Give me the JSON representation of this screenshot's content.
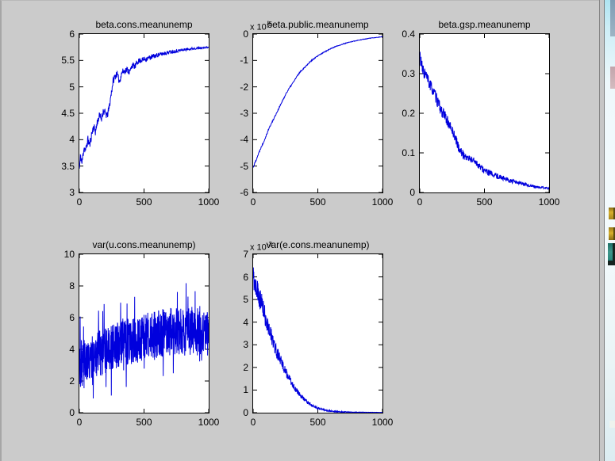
{
  "figure": {
    "background": "#cbcbcb",
    "plot_background": "#ffffff",
    "axis_color": "#000000",
    "trace_color": "#0000dd"
  },
  "desktop": {
    "strip_colors": {
      "top": "#aee4f1",
      "middle": "#f2fafc",
      "bottom": "#dcedf2"
    },
    "icons": [
      {
        "name": "window-fragment-blue",
        "color": "#8fa8bc"
      },
      {
        "name": "icon-fragment-pink",
        "color": "#c2a4ab"
      },
      {
        "name": "desktop-icon-yellow-upper",
        "color": "#c9a32a"
      },
      {
        "name": "desktop-icon-yellow-lower",
        "color": "#c9a32a"
      },
      {
        "name": "desktop-icon-teal",
        "color": "#2e8b80"
      },
      {
        "name": "icon-fragment-light",
        "color": "#eef3ee"
      }
    ]
  },
  "chart_data": [
    {
      "type": "line",
      "title": "beta.cons.meanunemp",
      "exponent": null,
      "xlim": [
        0,
        1000
      ],
      "ylim": [
        3,
        6
      ],
      "xticks": [
        "0",
        "500",
        "1000"
      ],
      "yticks": [
        "3",
        "3.5",
        "4",
        "4.5",
        "5",
        "5.5",
        "6"
      ],
      "line_color": "#0000dd",
      "anchors": {
        "x": [
          0,
          10,
          20,
          35,
          50,
          65,
          80,
          95,
          110,
          125,
          140,
          155,
          170,
          185,
          200,
          215,
          230,
          245,
          260,
          275,
          290,
          310,
          330,
          350,
          370,
          390,
          410,
          430,
          450,
          470,
          500,
          550,
          600,
          650,
          700,
          750,
          800,
          850,
          900,
          950,
          1000
        ],
        "y": [
          3.45,
          3.7,
          3.55,
          3.85,
          3.8,
          4.0,
          3.9,
          4.1,
          4.25,
          4.15,
          4.35,
          4.45,
          4.4,
          4.55,
          4.5,
          4.45,
          4.6,
          4.85,
          5.1,
          5.2,
          5.25,
          5.1,
          5.28,
          5.3,
          5.33,
          5.28,
          5.42,
          5.38,
          5.48,
          5.5,
          5.52,
          5.56,
          5.6,
          5.63,
          5.66,
          5.68,
          5.7,
          5.72,
          5.73,
          5.74,
          5.75
        ]
      },
      "noise": {
        "seed": 11,
        "amp_start": 0.09,
        "amp_end": 0.012,
        "prop": 0,
        "spike_prob": 0,
        "spike_scale": 0
      },
      "n_points": 500
    },
    {
      "type": "line",
      "title": "beta.public.meanunemp",
      "exponent": {
        "base": "x 10",
        "sup": "-5"
      },
      "xlim": [
        0,
        1000
      ],
      "ylim": [
        -6,
        0
      ],
      "xticks": [
        "0",
        "500",
        "1000"
      ],
      "yticks": [
        "-6",
        "-5",
        "-4",
        "-3",
        "-2",
        "-1",
        "0"
      ],
      "line_color": "#0000dd",
      "anchors": {
        "x": [
          0,
          20,
          40,
          60,
          80,
          100,
          120,
          140,
          160,
          180,
          200,
          220,
          240,
          260,
          280,
          300,
          320,
          340,
          360,
          380,
          400,
          420,
          440,
          460,
          480,
          500,
          550,
          600,
          650,
          700,
          750,
          800,
          850,
          900,
          950,
          1000
        ],
        "y": [
          -5.05,
          -4.8,
          -4.55,
          -4.3,
          -4.1,
          -3.85,
          -3.6,
          -3.4,
          -3.2,
          -3.0,
          -2.8,
          -2.6,
          -2.4,
          -2.2,
          -2.05,
          -1.9,
          -1.75,
          -1.6,
          -1.45,
          -1.35,
          -1.25,
          -1.15,
          -1.05,
          -0.97,
          -0.9,
          -0.83,
          -0.68,
          -0.55,
          -0.45,
          -0.37,
          -0.3,
          -0.25,
          -0.2,
          -0.16,
          -0.13,
          -0.1
        ]
      },
      "noise": {
        "seed": 22,
        "amp_start": 0.035,
        "amp_end": 0.006,
        "prop": 0,
        "spike_prob": 0,
        "spike_scale": 0
      },
      "n_points": 420
    },
    {
      "type": "line",
      "title": "beta.gsp.meanunemp",
      "exponent": null,
      "xlim": [
        0,
        1000
      ],
      "ylim": [
        0,
        0.4
      ],
      "xticks": [
        "0",
        "500",
        "1000"
      ],
      "yticks": [
        "0",
        "0.1",
        "0.2",
        "0.3",
        "0.4"
      ],
      "line_color": "#0000dd",
      "anchors": {
        "x": [
          0,
          20,
          40,
          60,
          80,
          100,
          120,
          140,
          160,
          180,
          200,
          220,
          240,
          260,
          280,
          300,
          320,
          340,
          360,
          380,
          400,
          430,
          460,
          500,
          550,
          600,
          650,
          700,
          750,
          800,
          850,
          900,
          950,
          1000
        ],
        "y": [
          0.35,
          0.31,
          0.3,
          0.285,
          0.27,
          0.26,
          0.243,
          0.228,
          0.21,
          0.2,
          0.19,
          0.175,
          0.163,
          0.15,
          0.133,
          0.113,
          0.102,
          0.094,
          0.089,
          0.086,
          0.083,
          0.078,
          0.066,
          0.055,
          0.047,
          0.041,
          0.036,
          0.029,
          0.025,
          0.021,
          0.017,
          0.014,
          0.012,
          0.01
        ]
      },
      "noise": {
        "seed": 33,
        "amp_start": 0.012,
        "amp_end": 0.002,
        "prop": 0.02,
        "spike_prob": 0,
        "spike_scale": 0
      },
      "n_points": 520
    },
    {
      "type": "line",
      "title": "var(u.cons.meanunemp)",
      "exponent": null,
      "xlim": [
        0,
        1000
      ],
      "ylim": [
        0,
        10
      ],
      "xticks": [
        "0",
        "500",
        "1000"
      ],
      "yticks": [
        "0",
        "2",
        "4",
        "6",
        "8",
        "10"
      ],
      "line_color": "#0000dd",
      "anchors": {
        "x": [
          0,
          50,
          100,
          150,
          200,
          250,
          300,
          350,
          400,
          450,
          500,
          550,
          600,
          650,
          700,
          750,
          800,
          850,
          900,
          950,
          1000
        ],
        "y": [
          3.0,
          3.3,
          3.5,
          3.7,
          3.9,
          4.1,
          4.3,
          4.4,
          4.55,
          4.65,
          4.75,
          4.85,
          4.95,
          5.05,
          5.1,
          5.15,
          5.1,
          5.15,
          5.15,
          5.05,
          4.9
        ]
      },
      "noise": {
        "seed": 44,
        "amp_start": 1.45,
        "amp_end": 1.55,
        "prop": 0,
        "spike_prob": 0.06,
        "spike_scale": 3.2
      },
      "n_points": 800
    },
    {
      "type": "line",
      "title": "var(e.cons.meanunemp)",
      "exponent": {
        "base": "x 10",
        "sup": "-3"
      },
      "xlim": [
        0,
        1000
      ],
      "ylim": [
        0,
        7
      ],
      "xticks": [
        "0",
        "500",
        "1000"
      ],
      "yticks": [
        "0",
        "1",
        "2",
        "3",
        "4",
        "5",
        "6",
        "7"
      ],
      "line_color": "#0000dd",
      "anchors": {
        "x": [
          0,
          20,
          40,
          60,
          80,
          100,
          120,
          140,
          160,
          180,
          200,
          220,
          240,
          260,
          280,
          300,
          320,
          340,
          360,
          380,
          400,
          430,
          460,
          500,
          550,
          600,
          650,
          700,
          800,
          900,
          1000
        ],
        "y": [
          6.0,
          5.75,
          5.3,
          4.9,
          4.5,
          4.1,
          3.75,
          3.4,
          3.05,
          2.75,
          2.45,
          2.2,
          1.95,
          1.7,
          1.5,
          1.3,
          1.12,
          0.95,
          0.8,
          0.68,
          0.56,
          0.42,
          0.3,
          0.2,
          0.12,
          0.07,
          0.045,
          0.03,
          0.02,
          0.015,
          0.012
        ]
      },
      "noise": {
        "seed": 55,
        "amp_start": 0.05,
        "amp_end": 0.002,
        "prop": 0.09,
        "spike_prob": 0,
        "spike_scale": 0
      },
      "n_points": 620
    }
  ]
}
